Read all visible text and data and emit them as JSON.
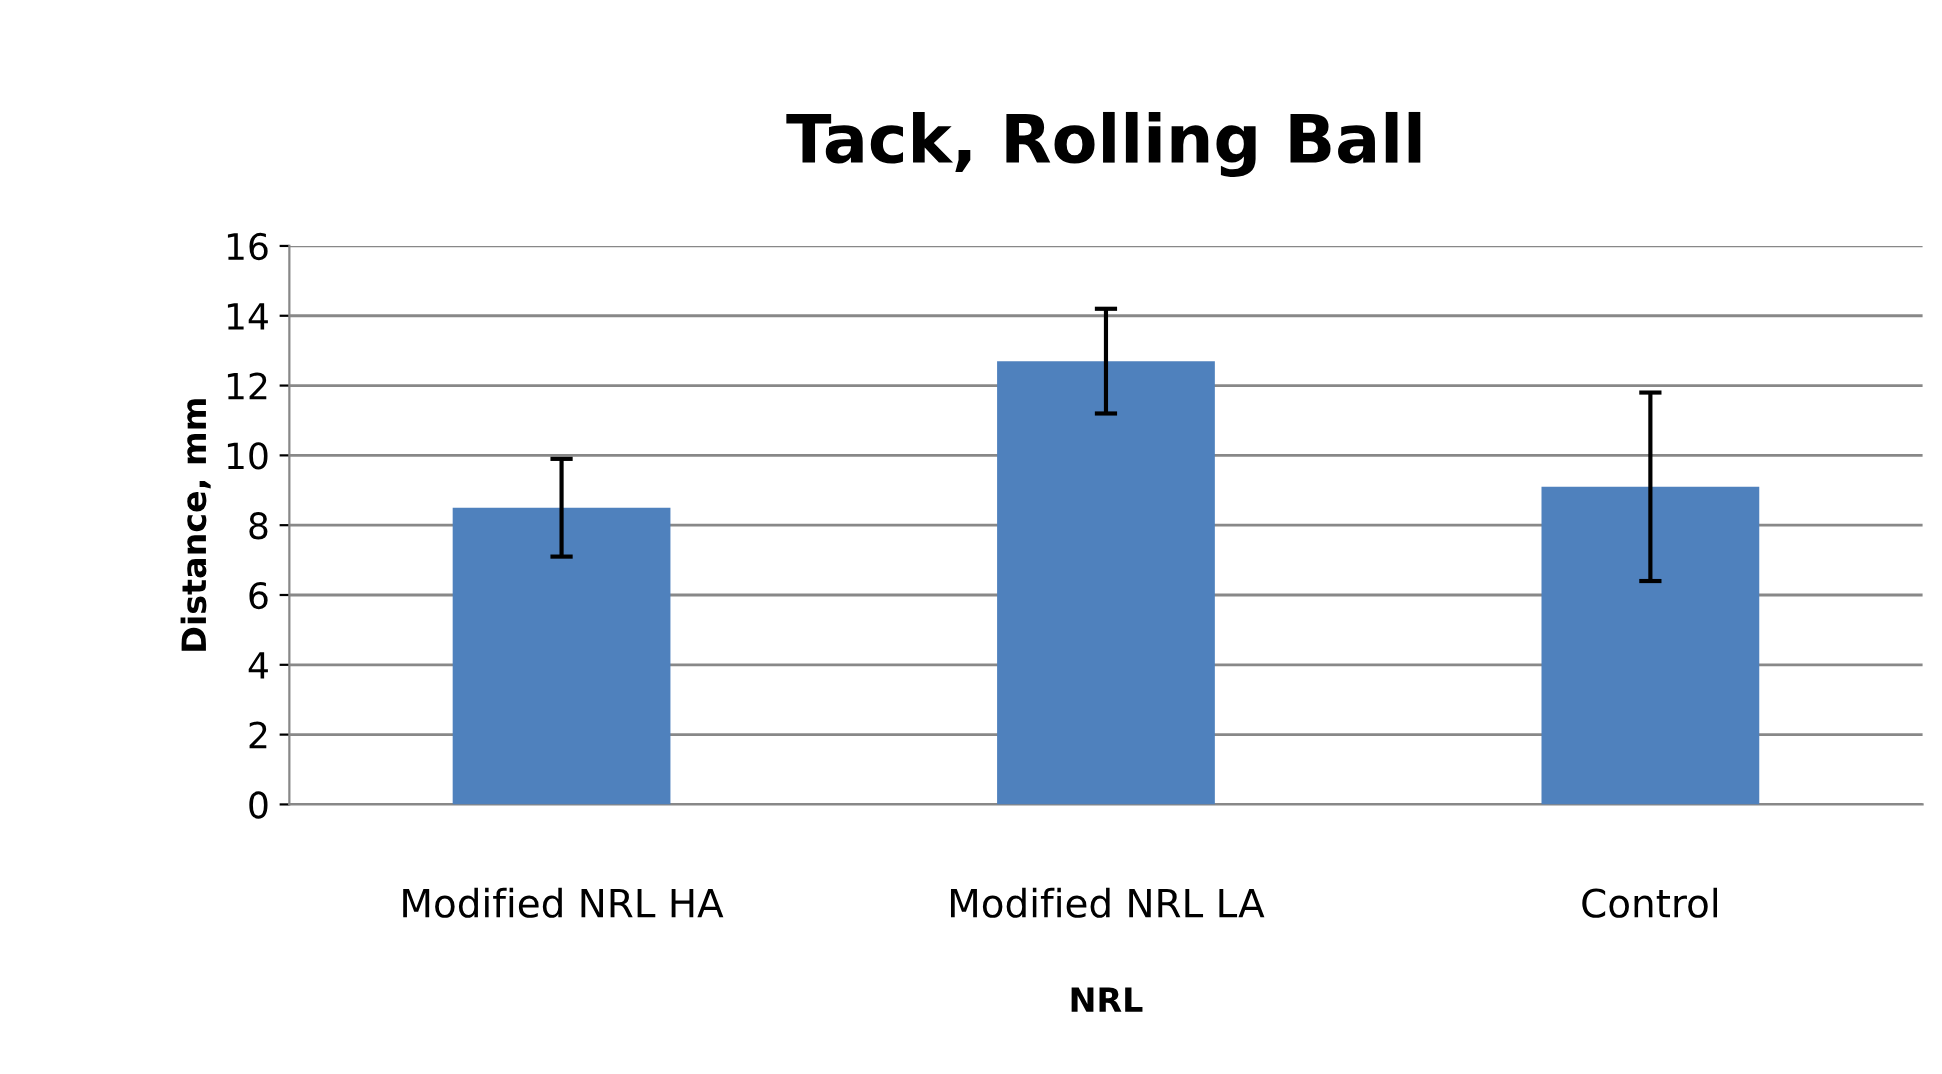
{
  "chart_data": {
    "type": "bar",
    "title": "Tack, Rolling Ball",
    "xlabel": "NRL",
    "ylabel": "Distance, mm",
    "categories": [
      "Modified NRL HA",
      "Modified NRL LA",
      "Control"
    ],
    "values": [
      8.5,
      12.7,
      9.1
    ],
    "errors": [
      1.4,
      1.5,
      2.7
    ],
    "color": "#4f81bd",
    "ylim": [
      0,
      16
    ],
    "yticks": [
      0,
      2,
      4,
      6,
      8,
      10,
      12,
      14,
      16
    ],
    "grid": "y",
    "legend": false
  }
}
